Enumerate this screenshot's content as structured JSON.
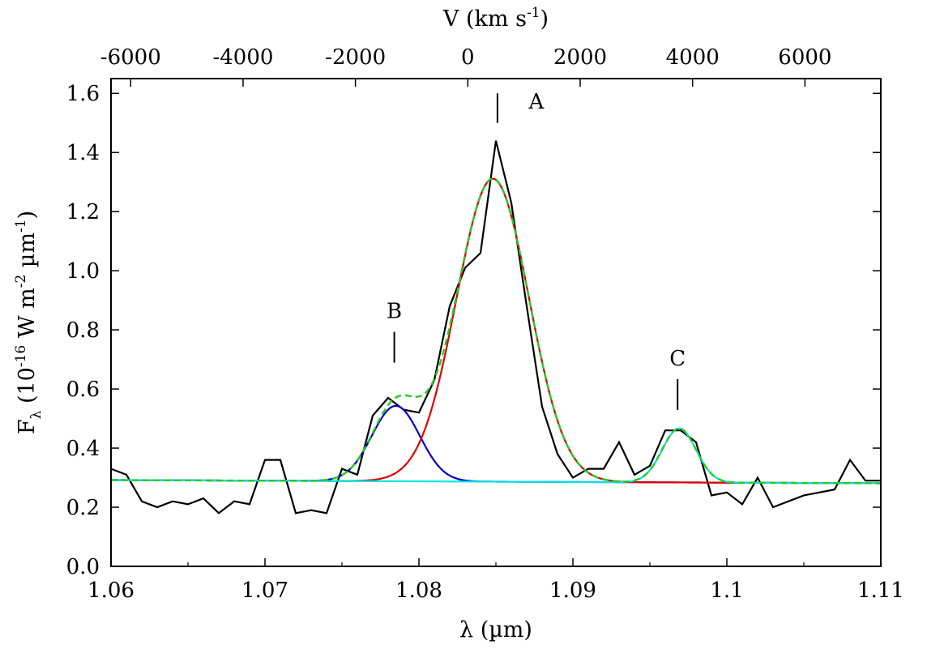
{
  "chart_data": {
    "type": "line",
    "xlabel": "λ (µm)",
    "x2label_main": "V (km s",
    "x2label_sup": "-1",
    "x2label_end": ")",
    "ylabel_main": "F",
    "ylabel_sub": "λ",
    "ylabel_mid1": " (10",
    "ylabel_sup1": "-16",
    "ylabel_mid2": " W m",
    "ylabel_sup2": "-2",
    "ylabel_mid3": " µm",
    "ylabel_sup3": "-1",
    "ylabel_end": ")",
    "xlim": [
      1.06,
      1.11
    ],
    "ylim": [
      0.0,
      1.65
    ],
    "x2lim": [
      -6350,
      7350
    ],
    "xticks": [
      1.06,
      1.07,
      1.08,
      1.09,
      1.1,
      1.11
    ],
    "xtick_labels": [
      "1.06",
      "1.07",
      "1.08",
      "1.09",
      "1.1",
      "1.11"
    ],
    "yticks": [
      0.0,
      0.2,
      0.4,
      0.6,
      0.8,
      1.0,
      1.2,
      1.4,
      1.6
    ],
    "ytick_labels": [
      "0.0",
      "0.2",
      "0.4",
      "0.6",
      "0.8",
      "1.0",
      "1.2",
      "1.4",
      "1.6"
    ],
    "x2ticks": [
      -6000,
      -4000,
      -2000,
      0,
      2000,
      4000,
      6000
    ],
    "x2tick_labels": [
      "-6000",
      "-4000",
      "-2000",
      "0",
      "2000",
      "4000",
      "6000"
    ],
    "grid": false,
    "observed": {
      "color": "#000000",
      "x": [
        1.06,
        1.061,
        1.062,
        1.063,
        1.064,
        1.065,
        1.066,
        1.067,
        1.068,
        1.069,
        1.07,
        1.071,
        1.072,
        1.073,
        1.074,
        1.075,
        1.076,
        1.077,
        1.078,
        1.079,
        1.08,
        1.081,
        1.082,
        1.083,
        1.084,
        1.085,
        1.086,
        1.087,
        1.088,
        1.089,
        1.09,
        1.091,
        1.092,
        1.093,
        1.094,
        1.095,
        1.096,
        1.097,
        1.098,
        1.099,
        1.1,
        1.101,
        1.102,
        1.103,
        1.104,
        1.105,
        1.106,
        1.107,
        1.108,
        1.109,
        1.11
      ],
      "y": [
        0.33,
        0.31,
        0.22,
        0.2,
        0.22,
        0.21,
        0.23,
        0.18,
        0.22,
        0.21,
        0.36,
        0.36,
        0.18,
        0.19,
        0.18,
        0.33,
        0.31,
        0.51,
        0.57,
        0.53,
        0.52,
        0.63,
        0.88,
        1.01,
        1.06,
        1.44,
        1.23,
        0.88,
        0.54,
        0.38,
        0.3,
        0.33,
        0.33,
        0.42,
        0.31,
        0.34,
        0.46,
        0.46,
        0.42,
        0.24,
        0.25,
        0.21,
        0.3,
        0.2,
        0.22,
        0.24,
        0.25,
        0.26,
        0.36,
        0.29,
        0.29
      ]
    },
    "continuum": {
      "y_start": 0.292,
      "y_end": 0.281
    },
    "components": [
      {
        "label": "A",
        "color": "#e00000",
        "center": 1.0848,
        "amplitude": 1.025,
        "sigma": 0.00235
      },
      {
        "label": "B",
        "color": "#0000cc",
        "center": 1.0785,
        "amplitude": 0.255,
        "sigma": 0.00155
      },
      {
        "label": "C",
        "color": "#00e5e5",
        "center": 1.0969,
        "amplitude": 0.183,
        "sigma": 0.0011
      }
    ],
    "total_fit_color": "#22cc22",
    "annotations": [
      {
        "text": "A",
        "x": 1.0851,
        "y": 1.55
      },
      {
        "text": "B",
        "x": 1.0784,
        "y": 0.84
      },
      {
        "text": "C",
        "x": 1.0968,
        "y": 0.68
      }
    ]
  }
}
